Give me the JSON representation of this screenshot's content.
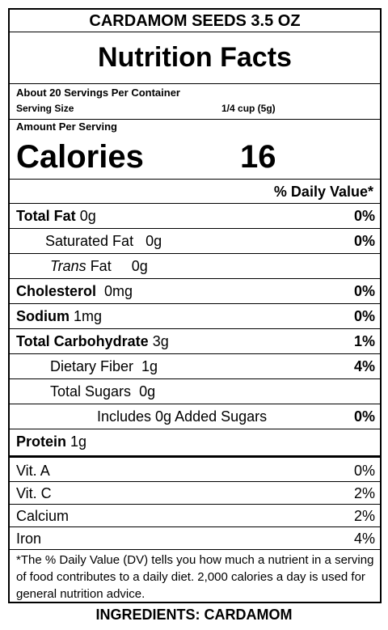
{
  "product_title": "CARDAMOM SEEDS 3.5 OZ",
  "heading": "Nutrition Facts",
  "servings_per_container": "About 20 Servings Per Container",
  "serving_size_label": "Serving Size",
  "serving_size_value": "1/4 cup (5g)",
  "amount_per_serving": "Amount Per Serving",
  "calories_label": "Calories",
  "calories_value": "16",
  "daily_value_header": "% Daily Value*",
  "nutrients": {
    "total_fat": {
      "name": "Total Fat",
      "amount": "0g",
      "dv": "0%"
    },
    "saturated_fat": {
      "name": "Saturated Fat",
      "amount": "0g",
      "dv": "0%"
    },
    "trans_fat": {
      "name_italic": "Trans",
      "name_rest": " Fat",
      "amount": "0g"
    },
    "cholesterol": {
      "name": "Cholesterol",
      "amount": "0mg",
      "dv": "0%"
    },
    "sodium": {
      "name": "Sodium",
      "amount": "1mg",
      "dv": "0%"
    },
    "total_carb": {
      "name": "Total Carbohydrate",
      "amount": "3g",
      "dv": "1%"
    },
    "dietary_fiber": {
      "name": "Dietary Fiber",
      "amount": "1g",
      "dv": "4%"
    },
    "total_sugars": {
      "name": "Total Sugars",
      "amount": "0g"
    },
    "added_sugars": {
      "name": "Includes 0g Added Sugars",
      "dv": "0%"
    },
    "protein": {
      "name": "Protein",
      "amount": "1g"
    }
  },
  "vitamins": [
    {
      "name": "Vit. A",
      "dv": "0%"
    },
    {
      "name": "Vit. C",
      "dv": "2%"
    },
    {
      "name": "Calcium",
      "dv": "2%"
    },
    {
      "name": "Iron",
      "dv": "4%"
    }
  ],
  "footnote": "*The % Daily Value (DV) tells you how much a nutrient in a serving of food contributes to a daily diet. 2,000 calories a day is used for general nutrition advice.",
  "ingredients": "INGREDIENTS: CARDAMOM"
}
